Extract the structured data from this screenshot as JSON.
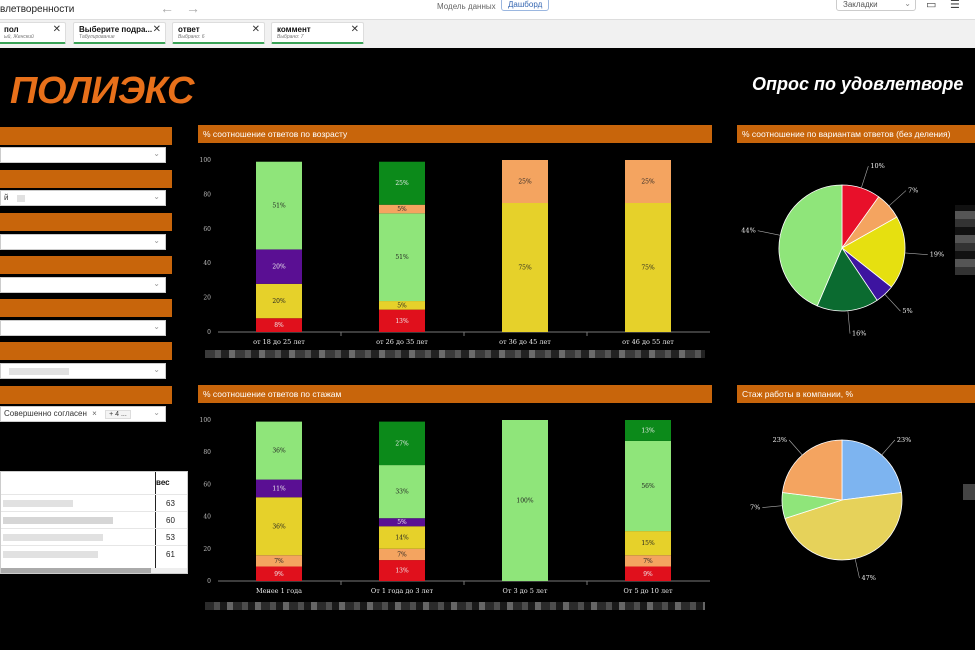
{
  "app": {
    "title_fragment": "влетворенности",
    "tab_model": "Модель данных",
    "tab_dashboard": "Дашборд",
    "bookmarks_label": "Закладки",
    "colors": {
      "accent": "#c8650b",
      "brand": "#e8701a",
      "green_ok": "#3aa357"
    }
  },
  "filters": [
    {
      "label": "пол",
      "sub": "ый, Женский"
    },
    {
      "label": "Выберите подра...",
      "sub": "Табулирование"
    },
    {
      "label": "ответ",
      "sub": "Выбрано: 6"
    },
    {
      "label": "коммент",
      "sub": "Выбрано: 7"
    }
  ],
  "brand": {
    "logo_text": "ПОЛИЭКС",
    "survey_title": "Опрос по удовлетворе"
  },
  "left_panel": {
    "select_values": [
      "",
      "й",
      "",
      "",
      "",
      "",
      "Совершенно согласен"
    ],
    "extra_tag": "+ 4 ...",
    "weights_header": "вес",
    "weights": [
      "63",
      "60",
      "53",
      "61"
    ]
  },
  "panels": {
    "age_title": "% соотношение ответов по возрасту",
    "variants_title": "% соотношение по вариантам ответов (без деления)",
    "tenure_title": "% соотношение ответов по стажам",
    "company_title": "Стаж работы в компании, %"
  },
  "chart_data": [
    {
      "type": "bar",
      "stacked": true,
      "title": "% соотношение ответов по возрасту",
      "categories": [
        "от 18 до 25 лет",
        "от 26 до 35 лет",
        "от 36 до 45 лет",
        "от 46 до 55 лет"
      ],
      "ylim": [
        0,
        100
      ],
      "yticks": [
        "0",
        "20",
        "40",
        "60",
        "80",
        "100"
      ],
      "segments": [
        [
          {
            "value": 8,
            "color": "#e0101c"
          },
          {
            "value": 20,
            "color": "#e6d12a"
          },
          {
            "value": 20,
            "color": "#5a0f93"
          },
          {
            "value": 51,
            "color": "#8fe57a"
          }
        ],
        [
          {
            "value": 13,
            "color": "#e0101c"
          },
          {
            "value": 5,
            "color": "#e6d12a"
          },
          {
            "value": 51,
            "color": "#8fe57a"
          },
          {
            "value": 5,
            "color": "#f4a460"
          },
          {
            "value": 25,
            "color": "#0c8a1a"
          }
        ],
        [
          {
            "value": 75,
            "color": "#e6d12a"
          },
          {
            "value": 25,
            "color": "#f4a460"
          }
        ],
        [
          {
            "value": 75,
            "color": "#e6d12a"
          },
          {
            "value": 25,
            "color": "#f4a460"
          }
        ]
      ]
    },
    {
      "type": "pie",
      "title": "% соотношение по вариантам ответов (без деления)",
      "slices": [
        {
          "value": 10,
          "color": "#e8102a"
        },
        {
          "value": 7,
          "color": "#f4a460"
        },
        {
          "value": 19,
          "color": "#e6e010"
        },
        {
          "value": 5,
          "color": "#3d14a0"
        },
        {
          "value": 16,
          "color": "#0b6b30"
        },
        {
          "value": 44,
          "color": "#8fe57a"
        }
      ]
    },
    {
      "type": "bar",
      "stacked": true,
      "title": "% соотношение ответов по стажам",
      "categories": [
        "Менее 1 года",
        "От 1 года до 3 лет",
        "От 3 до 5 лет",
        "От 5 до 10 лет"
      ],
      "ylim": [
        0,
        100
      ],
      "yticks": [
        "0",
        "20",
        "40",
        "60",
        "80",
        "100"
      ],
      "segments": [
        [
          {
            "value": 9,
            "color": "#e0101c"
          },
          {
            "value": 7,
            "color": "#f4a460"
          },
          {
            "value": 36,
            "color": "#e6d12a"
          },
          {
            "value": 11,
            "color": "#5a0f93"
          },
          {
            "value": 36,
            "color": "#8fe57a"
          }
        ],
        [
          {
            "value": 13,
            "color": "#e0101c"
          },
          {
            "value": 7,
            "color": "#f4a460"
          },
          {
            "value": 14,
            "color": "#e6d12a"
          },
          {
            "value": 5,
            "color": "#5a0f93"
          },
          {
            "value": 33,
            "color": "#8fe57a"
          },
          {
            "value": 27,
            "color": "#0c8a1a"
          }
        ],
        [
          {
            "value": 100,
            "color": "#8fe57a"
          }
        ],
        [
          {
            "value": 9,
            "color": "#e0101c"
          },
          {
            "value": 7,
            "color": "#f4a460"
          },
          {
            "value": 15,
            "color": "#e6d12a"
          },
          {
            "value": 56,
            "color": "#8fe57a"
          },
          {
            "value": 13,
            "color": "#0c8a1a"
          }
        ]
      ]
    },
    {
      "type": "pie",
      "title": "Стаж работы в компании, %",
      "slices": [
        {
          "value": 23,
          "color": "#7db4f0"
        },
        {
          "value": 47,
          "color": "#e6d25a"
        },
        {
          "value": 7,
          "color": "#8fe57a"
        },
        {
          "value": 23,
          "color": "#f4a460"
        }
      ]
    }
  ]
}
